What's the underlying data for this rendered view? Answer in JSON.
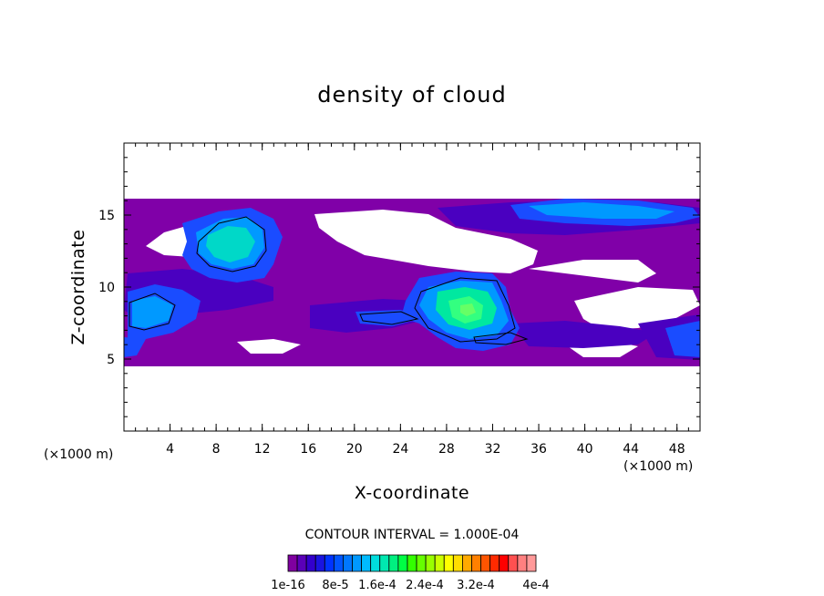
{
  "chart_data": {
    "type": "heatmap",
    "title": "density of cloud",
    "xlabel": "X-coordinate",
    "ylabel": "Z-coordinate",
    "x_unit": "(×1000 m)",
    "y_unit": "(×1000 m)",
    "xlim": [
      0,
      50
    ],
    "ylim": [
      0,
      20
    ],
    "x_ticks": [
      4,
      8,
      12,
      16,
      20,
      24,
      28,
      32,
      36,
      40,
      44,
      48
    ],
    "y_ticks": [
      5,
      10,
      15
    ],
    "contour_interval": "CONTOUR INTERVAL = 1.000E-04",
    "colorbar": {
      "tick_labels": [
        "1e-16",
        "8e-5",
        "1.6e-4",
        "2.4e-4",
        "3.2e-4",
        "4e-4"
      ],
      "colors": [
        "#7f00a0",
        "#5a00b8",
        "#3300cc",
        "#1a14e0",
        "#0033ff",
        "#0055ff",
        "#0077ff",
        "#0099ff",
        "#00bbff",
        "#00dddd",
        "#00e8b0",
        "#00f080",
        "#00ff44",
        "#33ff00",
        "#66ff00",
        "#99ff00",
        "#ccff00",
        "#ffff00",
        "#ffdd00",
        "#ffaa00",
        "#ff8000",
        "#ff5500",
        "#ff2a00",
        "#ff0000",
        "#ff5050",
        "#ff8080",
        "#ff9999"
      ]
    },
    "regions": [
      {
        "level": "low",
        "color": "#8000a8",
        "desc": "cloud band",
        "x": [
          0,
          50
        ],
        "z": [
          4.5,
          16
        ]
      },
      {
        "level": "mid",
        "color": "#1a4cff",
        "desc": "blob left",
        "x": [
          7,
          14
        ],
        "z": [
          11,
          15.5
        ]
      },
      {
        "level": "high",
        "color": "#00e0b0",
        "desc": "core left",
        "x": [
          8,
          12
        ],
        "z": [
          12,
          14.5
        ]
      },
      {
        "level": "mid",
        "color": "#1a4cff",
        "desc": "blob center",
        "x": [
          25,
          34
        ],
        "z": [
          6,
          10
        ]
      },
      {
        "level": "high",
        "color": "#33ff66",
        "desc": "core center",
        "x": [
          27,
          32
        ],
        "z": [
          7,
          9.5
        ]
      },
      {
        "level": "mid",
        "color": "#1a4cff",
        "desc": "blob upper right",
        "x": [
          34,
          50
        ],
        "z": [
          14,
          16
        ]
      }
    ]
  }
}
